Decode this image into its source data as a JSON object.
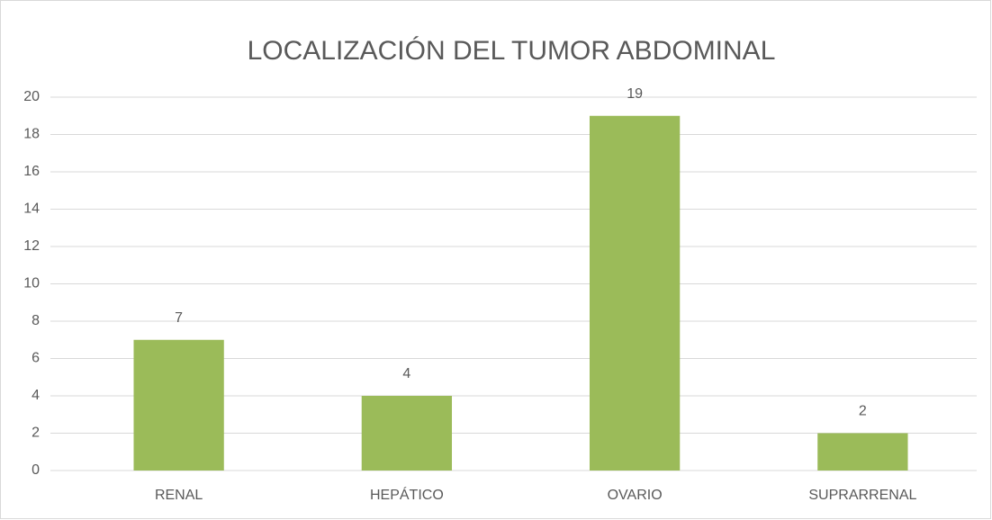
{
  "chart_data": {
    "type": "bar",
    "title": "LOCALIZACIÓN DEL TUMOR ABDOMINAL",
    "categories": [
      "RENAL",
      "HEPÁTICO",
      "OVARIO",
      "SUPRARRENAL"
    ],
    "values": [
      7,
      4,
      19,
      2
    ],
    "color": "#9bbb59",
    "ylim": [
      0,
      20
    ],
    "yticks": [
      0,
      2,
      4,
      6,
      8,
      10,
      12,
      14,
      16,
      18,
      20
    ],
    "grid": true
  }
}
